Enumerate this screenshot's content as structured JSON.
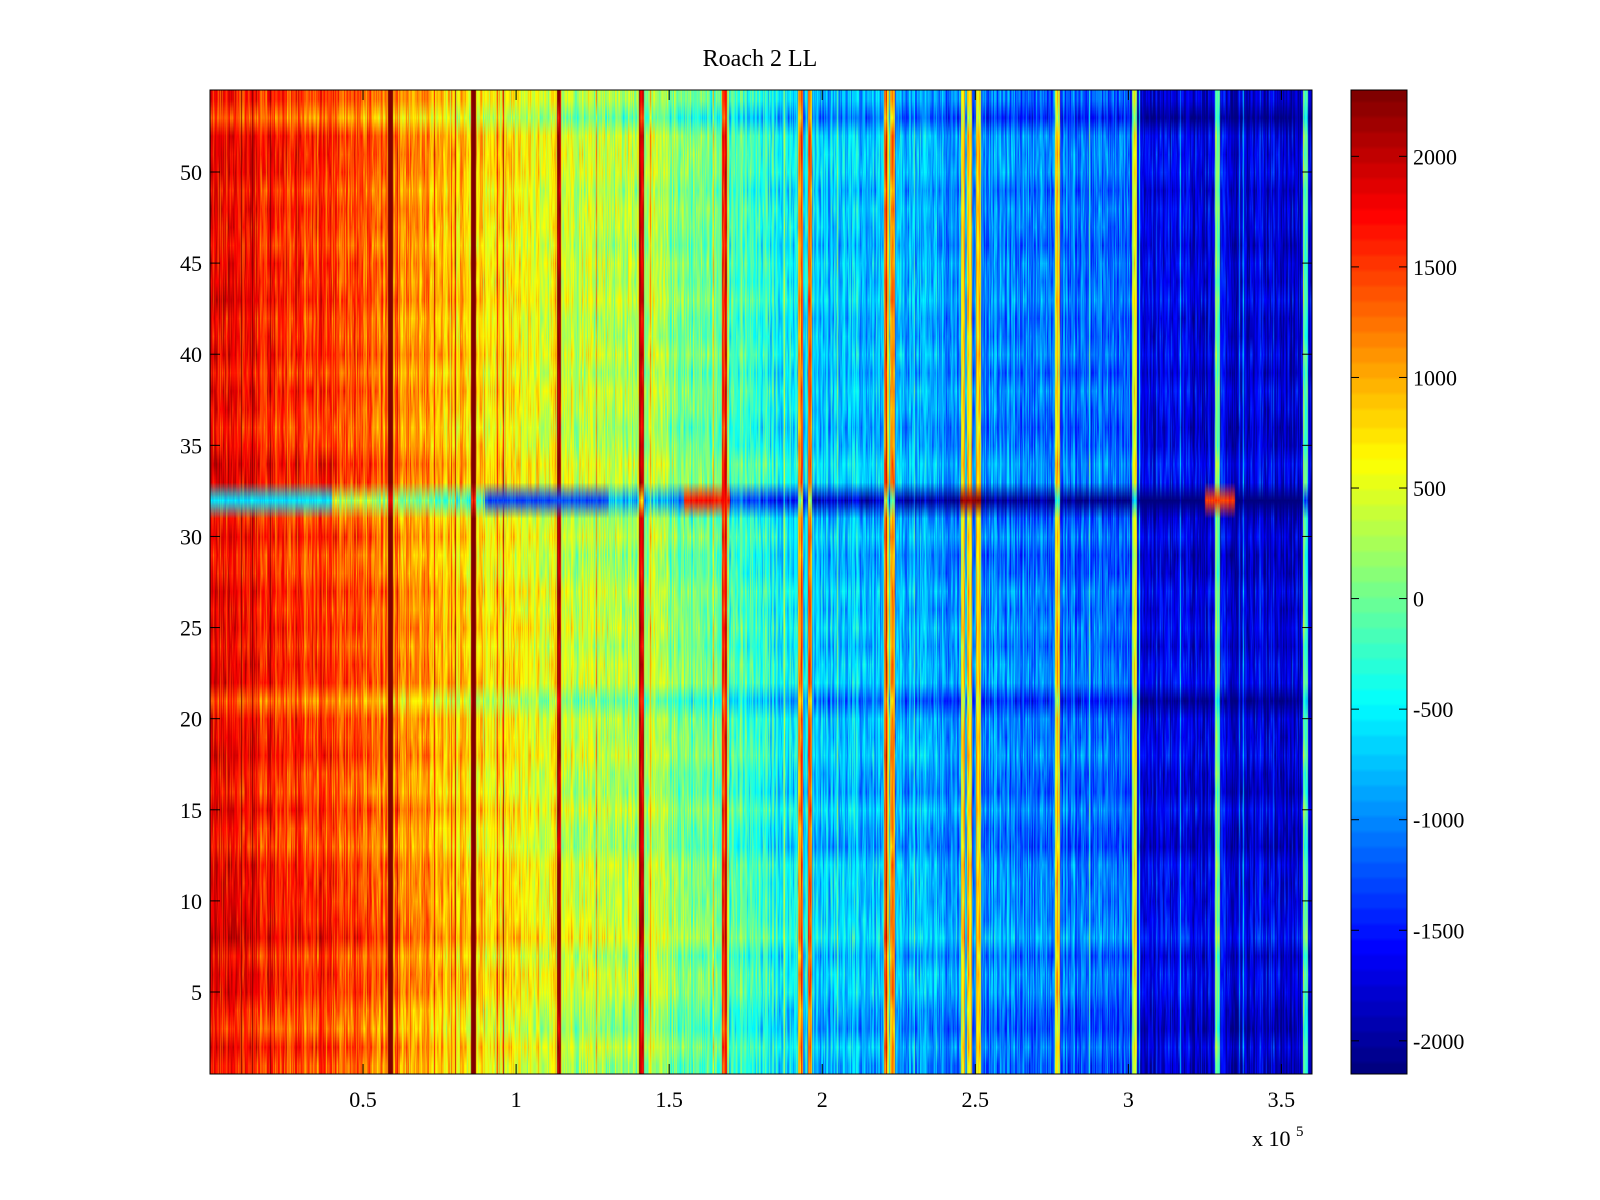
{
  "chart_data": {
    "type": "heatmap",
    "title": "Roach 2 LL",
    "xlabel": "",
    "ylabel": "",
    "x_multiplier_label": {
      "base": "x 10",
      "exponent": "5"
    },
    "xlim": [
      0,
      3.6
    ],
    "ylim": [
      0.5,
      54.5
    ],
    "xticks": [
      0.5,
      1,
      1.5,
      2,
      2.5,
      3,
      3.5
    ],
    "xtick_labels": [
      "0.5",
      "1",
      "1.5",
      "2",
      "2.5",
      "3",
      "3.5"
    ],
    "yticks": [
      5,
      10,
      15,
      20,
      25,
      30,
      35,
      40,
      45,
      50
    ],
    "ytick_labels": [
      "5",
      "10",
      "15",
      "20",
      "25",
      "30",
      "35",
      "40",
      "45",
      "50"
    ],
    "rows": 54,
    "colormap": "jet",
    "clim": [
      -2150,
      2300
    ],
    "colorbar": {
      "ticks": [
        -2000,
        -1500,
        -1000,
        -500,
        0,
        500,
        1000,
        1500,
        2000
      ],
      "tick_labels": [
        "-2000",
        "-1500",
        "-1000",
        "-500",
        "0",
        "500",
        "1000",
        "1500",
        "2000"
      ]
    },
    "trend": {
      "description": "value decreases roughly linearly with x",
      "points": [
        [
          0,
          1750
        ],
        [
          0.5,
          1350
        ],
        [
          0.9,
          700
        ],
        [
          1.5,
          150
        ],
        [
          2.0,
          -700
        ],
        [
          2.5,
          -1000
        ],
        [
          3.0,
          -1200
        ],
        [
          3.05,
          -1700
        ],
        [
          3.6,
          -1850
        ]
      ]
    },
    "row_offsets": {
      "32": -1100,
      "53": -450,
      "13": -200,
      "21": -250,
      "3": -150,
      "8": 250,
      "34": 150
    },
    "hot_columns_x": [
      0.59,
      0.86,
      1.14,
      1.41,
      1.68,
      1.93,
      1.96,
      2.21,
      2.23,
      2.46,
      2.48,
      2.51,
      2.77,
      3.02,
      3.29,
      3.58
    ],
    "row32_segments": [
      {
        "x0": 0.0,
        "x1": 0.4,
        "value": -600
      },
      {
        "x0": 0.9,
        "x1": 1.3,
        "value": -1300
      },
      {
        "x0": 1.55,
        "x1": 1.7,
        "value": 1700
      },
      {
        "x0": 2.45,
        "x1": 2.52,
        "value": 2200
      },
      {
        "x0": 3.25,
        "x1": 3.35,
        "value": 1500
      }
    ]
  }
}
